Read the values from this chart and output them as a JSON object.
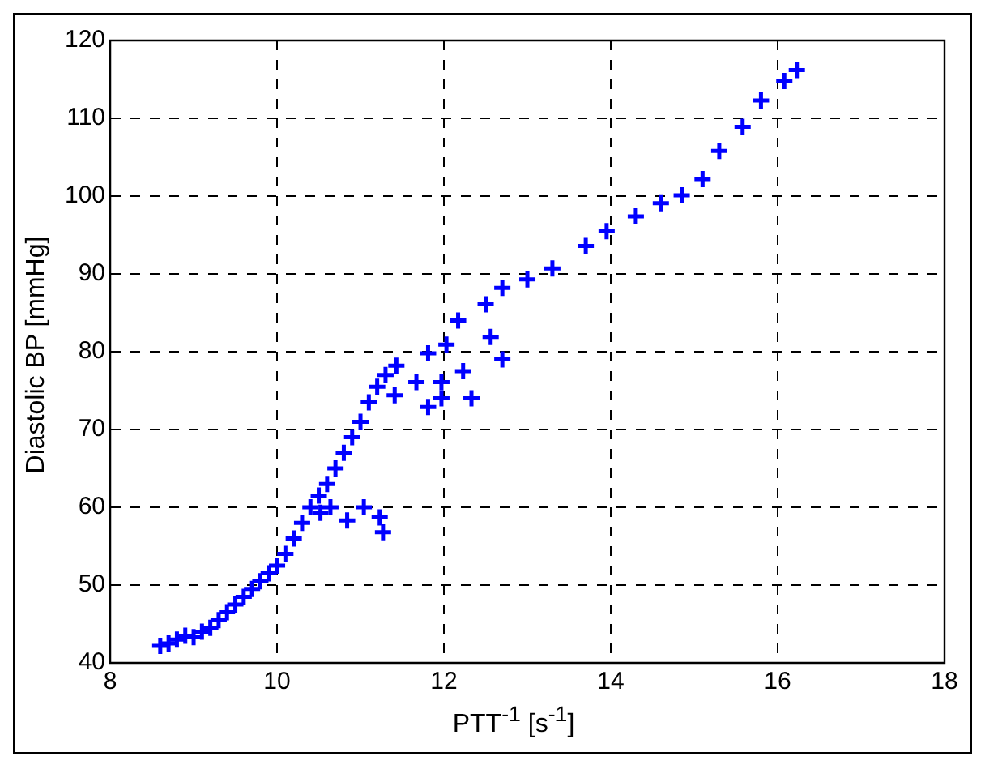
{
  "chart_data": {
    "type": "scatter",
    "xlabel": "PTT$^{-1}$ [s$^{-1}$]",
    "ylabel": "Diastolic BP [mmHg]",
    "marker": "cross",
    "grid": true,
    "xlim": [
      8,
      18
    ],
    "xticks": [
      8,
      10,
      12,
      14,
      16,
      18
    ],
    "ylim": [
      40,
      120
    ],
    "yticks": [
      40,
      50,
      60,
      70,
      80,
      90,
      100,
      110,
      120
    ],
    "series": [
      {
        "color": "#0000ff",
        "x": [
          8.6,
          8.7,
          8.8,
          8.9,
          9.0,
          9.1,
          9.2,
          9.3,
          9.4,
          9.5,
          9.6,
          9.7,
          9.8,
          9.9,
          10.0,
          10.1,
          10.2,
          10.3,
          10.4,
          10.5,
          10.6,
          10.7,
          10.8,
          10.9,
          11.0,
          11.1,
          11.2,
          11.3,
          11.43,
          12.17,
          12.5,
          12.7,
          13.0,
          13.3,
          13.7,
          13.95,
          14.3,
          14.6,
          14.85,
          15.1,
          15.3,
          15.58,
          15.8,
          16.08,
          16.23,
          10.52,
          10.64,
          10.84,
          11.04,
          11.23,
          11.27,
          11.81,
          12.03,
          11.67,
          11.97,
          11.81,
          11.97,
          12.23,
          12.33,
          11.41,
          12.56,
          12.7
        ],
        "values": [
          42.2,
          42.5,
          43,
          43.5,
          43.3,
          44,
          44.5,
          45.5,
          46.5,
          47.5,
          48.5,
          49.5,
          50.5,
          51.5,
          52.5,
          54,
          56,
          58,
          60,
          61.5,
          63,
          65,
          67,
          69,
          71,
          73.5,
          75.5,
          77,
          78.2,
          84,
          86.1,
          88.2,
          89.3,
          90.7,
          93.6,
          95.5,
          97.4,
          99.1,
          100.1,
          102.2,
          105.8,
          108.9,
          112.3,
          114.8,
          116.2,
          59.3,
          60,
          58.3,
          60,
          58.7,
          56.8,
          79.8,
          80.9,
          76.1,
          76.1,
          72.9,
          74,
          77.5,
          74,
          74.4,
          81.9,
          79
        ]
      }
    ]
  }
}
